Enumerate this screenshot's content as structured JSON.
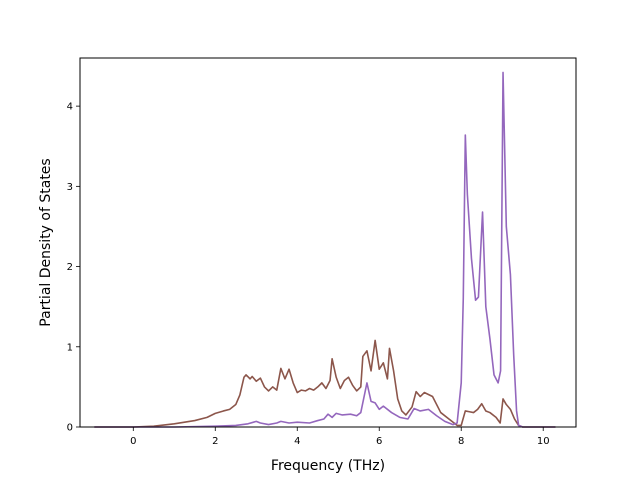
{
  "chart_data": {
    "type": "line",
    "title": "",
    "xlabel": "Frequency (THz)",
    "ylabel": "Partial Density of States",
    "xlim": [
      -1.3,
      10.8
    ],
    "ylim": [
      0,
      4.6
    ],
    "xticks": [
      0,
      2,
      4,
      6,
      8,
      10
    ],
    "yticks": [
      0,
      1,
      2,
      3,
      4
    ],
    "grid": false,
    "legend": "none",
    "series": [
      {
        "color": "#8c564b",
        "points": [
          [
            -0.95,
            0.0
          ],
          [
            0.0,
            0.0
          ],
          [
            0.5,
            0.01
          ],
          [
            1.0,
            0.04
          ],
          [
            1.5,
            0.08
          ],
          [
            1.8,
            0.12
          ],
          [
            2.0,
            0.17
          ],
          [
            2.2,
            0.2
          ],
          [
            2.35,
            0.22
          ],
          [
            2.5,
            0.28
          ],
          [
            2.6,
            0.4
          ],
          [
            2.7,
            0.62
          ],
          [
            2.75,
            0.65
          ],
          [
            2.85,
            0.6
          ],
          [
            2.9,
            0.63
          ],
          [
            3.0,
            0.57
          ],
          [
            3.1,
            0.61
          ],
          [
            3.2,
            0.5
          ],
          [
            3.3,
            0.45
          ],
          [
            3.4,
            0.5
          ],
          [
            3.5,
            0.46
          ],
          [
            3.6,
            0.73
          ],
          [
            3.7,
            0.6
          ],
          [
            3.8,
            0.72
          ],
          [
            3.9,
            0.55
          ],
          [
            4.0,
            0.43
          ],
          [
            4.1,
            0.46
          ],
          [
            4.2,
            0.45
          ],
          [
            4.3,
            0.48
          ],
          [
            4.4,
            0.46
          ],
          [
            4.5,
            0.5
          ],
          [
            4.6,
            0.55
          ],
          [
            4.7,
            0.48
          ],
          [
            4.8,
            0.58
          ],
          [
            4.85,
            0.85
          ],
          [
            4.95,
            0.62
          ],
          [
            5.05,
            0.48
          ],
          [
            5.15,
            0.58
          ],
          [
            5.25,
            0.62
          ],
          [
            5.35,
            0.52
          ],
          [
            5.45,
            0.45
          ],
          [
            5.55,
            0.5
          ],
          [
            5.6,
            0.88
          ],
          [
            5.7,
            0.95
          ],
          [
            5.8,
            0.7
          ],
          [
            5.9,
            1.08
          ],
          [
            6.0,
            0.72
          ],
          [
            6.1,
            0.8
          ],
          [
            6.2,
            0.6
          ],
          [
            6.25,
            0.98
          ],
          [
            6.35,
            0.7
          ],
          [
            6.45,
            0.35
          ],
          [
            6.55,
            0.2
          ],
          [
            6.65,
            0.15
          ],
          [
            6.8,
            0.25
          ],
          [
            6.9,
            0.44
          ],
          [
            7.0,
            0.38
          ],
          [
            7.1,
            0.43
          ],
          [
            7.3,
            0.38
          ],
          [
            7.5,
            0.18
          ],
          [
            7.7,
            0.1
          ],
          [
            7.9,
            0.02
          ],
          [
            8.0,
            0.02
          ],
          [
            8.1,
            0.2
          ],
          [
            8.2,
            0.19
          ],
          [
            8.3,
            0.18
          ],
          [
            8.4,
            0.22
          ],
          [
            8.5,
            0.29
          ],
          [
            8.6,
            0.2
          ],
          [
            8.7,
            0.18
          ],
          [
            8.85,
            0.12
          ],
          [
            8.95,
            0.05
          ],
          [
            9.02,
            0.35
          ],
          [
            9.1,
            0.28
          ],
          [
            9.2,
            0.22
          ],
          [
            9.3,
            0.1
          ],
          [
            9.4,
            0.02
          ],
          [
            9.5,
            0.0
          ],
          [
            10.3,
            0.0
          ]
        ]
      },
      {
        "color": "#9467bd",
        "points": [
          [
            -0.95,
            0.0
          ],
          [
            1.0,
            0.0
          ],
          [
            2.0,
            0.01
          ],
          [
            2.5,
            0.02
          ],
          [
            2.8,
            0.04
          ],
          [
            3.0,
            0.07
          ],
          [
            3.1,
            0.05
          ],
          [
            3.3,
            0.03
          ],
          [
            3.5,
            0.05
          ],
          [
            3.6,
            0.07
          ],
          [
            3.8,
            0.05
          ],
          [
            4.0,
            0.06
          ],
          [
            4.3,
            0.05
          ],
          [
            4.5,
            0.08
          ],
          [
            4.65,
            0.1
          ],
          [
            4.75,
            0.16
          ],
          [
            4.85,
            0.12
          ],
          [
            4.95,
            0.17
          ],
          [
            5.1,
            0.15
          ],
          [
            5.3,
            0.16
          ],
          [
            5.45,
            0.14
          ],
          [
            5.55,
            0.18
          ],
          [
            5.7,
            0.55
          ],
          [
            5.8,
            0.32
          ],
          [
            5.9,
            0.3
          ],
          [
            6.0,
            0.22
          ],
          [
            6.1,
            0.26
          ],
          [
            6.3,
            0.18
          ],
          [
            6.5,
            0.12
          ],
          [
            6.7,
            0.1
          ],
          [
            6.85,
            0.23
          ],
          [
            7.0,
            0.2
          ],
          [
            7.2,
            0.22
          ],
          [
            7.4,
            0.14
          ],
          [
            7.6,
            0.07
          ],
          [
            7.8,
            0.03
          ],
          [
            7.9,
            0.05
          ],
          [
            8.0,
            0.55
          ],
          [
            8.05,
            1.6
          ],
          [
            8.1,
            3.64
          ],
          [
            8.15,
            2.9
          ],
          [
            8.25,
            2.1
          ],
          [
            8.35,
            1.58
          ],
          [
            8.42,
            1.62
          ],
          [
            8.52,
            2.68
          ],
          [
            8.6,
            1.5
          ],
          [
            8.7,
            1.1
          ],
          [
            8.8,
            0.65
          ],
          [
            8.9,
            0.55
          ],
          [
            8.96,
            0.7
          ],
          [
            9.02,
            4.42
          ],
          [
            9.1,
            2.5
          ],
          [
            9.2,
            1.9
          ],
          [
            9.28,
            0.9
          ],
          [
            9.35,
            0.2
          ],
          [
            9.4,
            0.02
          ],
          [
            9.5,
            0.0
          ],
          [
            10.3,
            0.0
          ]
        ]
      }
    ]
  }
}
